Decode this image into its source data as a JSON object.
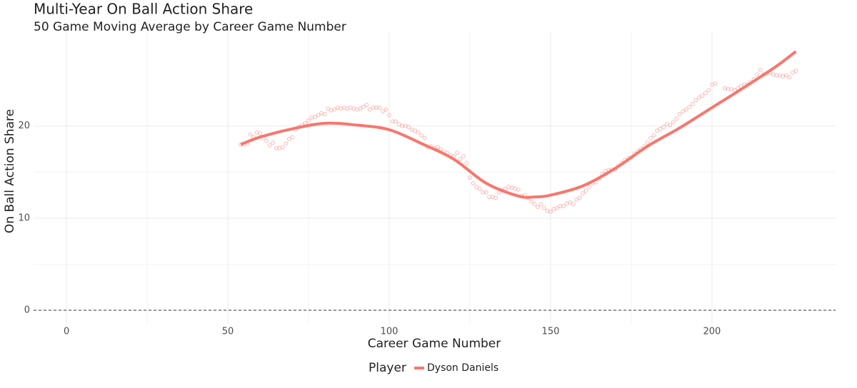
{
  "chart_data": {
    "type": "scatter",
    "title": "Multi-Year On Ball Action Share",
    "subtitle": "50 Game Moving Average by Career Game Number",
    "x_label": "Career Game Number",
    "y_label": "On Ball Action Share",
    "legend_title": "Player",
    "grid": true,
    "legend": "bottom",
    "hline": 0,
    "xlim": [
      -10.2,
      238.3
    ],
    "ylim": [
      -1.55,
      30.2
    ],
    "xticks": [
      0,
      50,
      100,
      150,
      200
    ],
    "yticks": [
      0,
      10,
      20
    ],
    "series": [
      {
        "name": "Dyson Daniels",
        "color": "#f8766d",
        "x": [
          54,
          55,
          56,
          57,
          58,
          59,
          60,
          61,
          62,
          63,
          64,
          65,
          66,
          67,
          68,
          69,
          70,
          71,
          72,
          73,
          74,
          75,
          76,
          77,
          78,
          79,
          80,
          81,
          82,
          83,
          84,
          85,
          86,
          87,
          88,
          89,
          90,
          91,
          92,
          93,
          94,
          95,
          96,
          97,
          98,
          99,
          100,
          101,
          102,
          103,
          104,
          105,
          106,
          107,
          108,
          109,
          110,
          111,
          112,
          113,
          114,
          115,
          116,
          117,
          118,
          119,
          120,
          121,
          122,
          123,
          124,
          125,
          126,
          127,
          128,
          129,
          130,
          131,
          132,
          133,
          134,
          135,
          136,
          137,
          138,
          139,
          140,
          141,
          142,
          143,
          144,
          145,
          146,
          147,
          148,
          149,
          150,
          151,
          152,
          153,
          154,
          155,
          156,
          157,
          158,
          159,
          160,
          161,
          162,
          163,
          164,
          165,
          166,
          167,
          168,
          169,
          170,
          171,
          172,
          173,
          174,
          175,
          176,
          177,
          178,
          179,
          180,
          181,
          182,
          183,
          184,
          185,
          186,
          187,
          188,
          189,
          190,
          191,
          192,
          193,
          194,
          195,
          196,
          197,
          198,
          199,
          200,
          201,
          204,
          205,
          206,
          207,
          208,
          209,
          210,
          211,
          212,
          213,
          214,
          215,
          216,
          217,
          218,
          219,
          220,
          221,
          222,
          223,
          224,
          225,
          226
        ],
        "values": [
          18.0,
          18.0,
          18.1,
          19.1,
          18.8,
          19.3,
          19.2,
          18.7,
          18.4,
          17.9,
          18.2,
          17.6,
          17.6,
          17.7,
          18.1,
          18.6,
          18.8,
          19.6,
          19.9,
          20.1,
          20.3,
          20.6,
          20.9,
          21.0,
          21.2,
          21.4,
          21.3,
          21.9,
          21.7,
          21.8,
          22.0,
          21.9,
          22.0,
          21.9,
          22.0,
          21.9,
          21.8,
          21.9,
          22.1,
          22.3,
          21.8,
          22.0,
          22.0,
          22.0,
          21.6,
          21.8,
          21.2,
          20.5,
          20.5,
          20.2,
          20.0,
          20.0,
          19.9,
          19.6,
          19.5,
          19.3,
          19.0,
          18.7,
          17.7,
          17.8,
          17.6,
          17.7,
          17.5,
          17.2,
          17.1,
          16.8,
          16.7,
          17.1,
          16.4,
          16.7,
          16.0,
          14.4,
          13.8,
          13.4,
          13.2,
          12.8,
          12.8,
          12.3,
          12.3,
          12.2,
          12.8,
          13.0,
          13.2,
          13.4,
          13.3,
          13.2,
          13.1,
          12.4,
          12.5,
          12.2,
          11.8,
          11.5,
          11.2,
          11.5,
          11.1,
          10.8,
          10.7,
          11.0,
          11.1,
          11.3,
          11.3,
          11.6,
          11.7,
          11.5,
          12.0,
          12.2,
          12.7,
          13.0,
          13.4,
          13.8,
          13.9,
          14.3,
          14.8,
          15.1,
          15.2,
          15.3,
          15.3,
          15.7,
          16.0,
          16.3,
          16.5,
          16.6,
          17.0,
          17.3,
          17.5,
          17.8,
          18.2,
          18.7,
          19.0,
          19.5,
          19.7,
          19.9,
          20.2,
          20.1,
          20.4,
          20.8,
          21.3,
          21.6,
          21.8,
          22.1,
          22.4,
          22.8,
          23.1,
          23.3,
          23.6,
          23.9,
          24.5,
          24.6,
          24.1,
          24.0,
          24.0,
          23.9,
          24.1,
          24.3,
          24.5,
          24.5,
          24.8,
          25.1,
          25.6,
          26.1,
          25.6,
          25.7,
          25.8,
          25.6,
          25.5,
          25.5,
          25.4,
          25.5,
          25.3,
          25.8,
          26.0
        ],
        "smooth_x": [
          54,
          60,
          70,
          80,
          90,
          100,
          110,
          120,
          130,
          140,
          145,
          150,
          160,
          170,
          180,
          190,
          200,
          210,
          220,
          226
        ],
        "smooth_values": [
          18.0,
          18.8,
          19.7,
          20.3,
          20.1,
          19.6,
          18.1,
          16.4,
          13.8,
          12.4,
          12.3,
          12.5,
          13.5,
          15.4,
          17.8,
          19.8,
          22.0,
          24.2,
          26.5,
          28.1
        ]
      }
    ]
  }
}
